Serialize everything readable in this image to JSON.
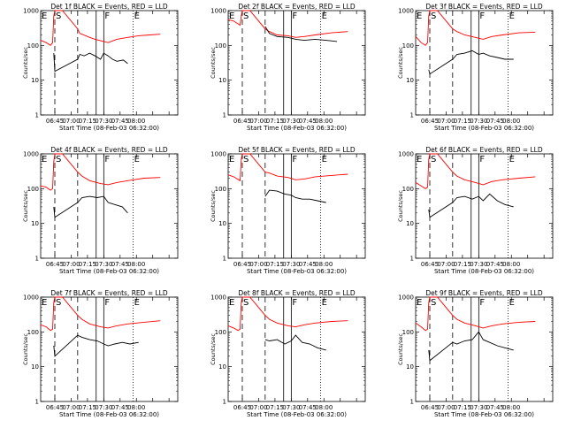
{
  "chart_data": {
    "type": "line",
    "shared": {
      "y_scale": "log",
      "ylim": [
        1,
        1000
      ],
      "ytick_labels": [
        "1",
        "10",
        "100",
        "1000"
      ],
      "ylabel": "Counts/sec",
      "xlabel": "Start Time (08-Feb-03 06:32:00)",
      "x_unit": "minutes after 06:32:00",
      "xlim": [
        0,
        126
      ],
      "xtick_values": [
        13,
        28,
        43,
        58,
        73,
        88,
        103,
        118
      ],
      "xtick_labels": [
        "06:45",
        "07:00",
        "07:15",
        "07:30",
        "07:45",
        "08:00"
      ],
      "xtick_label_values": [
        13,
        28,
        43,
        58,
        73,
        88
      ],
      "series_colors": {
        "events": "#000000",
        "lld": "#ff0000"
      },
      "markers": [
        {
          "letter": "E",
          "x": 0
        },
        {
          "letter": "S",
          "x": 13
        },
        {
          "letter": "F",
          "x": 58
        },
        {
          "letter": "E",
          "x": 85
        }
      ],
      "dashed_lines": [
        13,
        34
      ],
      "solid_lines": [
        51,
        58
      ],
      "dotted_lines": [
        85
      ]
    },
    "panels": [
      {
        "title": "Det 1f BLACK = Events, RED = LLD",
        "red": [
          [
            0,
            140
          ],
          [
            5,
            120
          ],
          [
            9,
            100
          ],
          [
            11,
            120
          ],
          [
            12,
            700
          ],
          [
            13,
            1000
          ],
          [
            20,
            1000
          ],
          [
            34,
            300
          ],
          [
            36,
            220
          ],
          [
            38,
            210
          ],
          [
            45,
            170
          ],
          [
            50,
            150
          ],
          [
            58,
            130
          ],
          [
            62,
            120
          ],
          [
            70,
            150
          ],
          [
            80,
            170
          ],
          [
            90,
            190
          ],
          [
            100,
            200
          ],
          [
            110,
            210
          ]
        ],
        "black": [
          [
            12,
            60
          ],
          [
            13,
            18
          ],
          [
            34,
            40
          ],
          [
            36,
            55
          ],
          [
            40,
            50
          ],
          [
            45,
            60
          ],
          [
            50,
            50
          ],
          [
            55,
            40
          ],
          [
            58,
            60
          ],
          [
            62,
            50
          ],
          [
            66,
            40
          ],
          [
            70,
            35
          ],
          [
            76,
            38
          ],
          [
            80,
            30
          ]
        ]
      },
      {
        "title": "Det 2f BLACK = Events, RED = LLD",
        "red": [
          [
            0,
            550
          ],
          [
            5,
            500
          ],
          [
            11,
            380
          ],
          [
            12,
            700
          ],
          [
            13,
            1000
          ],
          [
            20,
            1000
          ],
          [
            34,
            300
          ],
          [
            38,
            250
          ],
          [
            45,
            200
          ],
          [
            55,
            190
          ],
          [
            62,
            170
          ],
          [
            70,
            180
          ],
          [
            80,
            200
          ],
          [
            95,
            230
          ],
          [
            110,
            250
          ]
        ],
        "black": [
          [
            34,
            350
          ],
          [
            38,
            220
          ],
          [
            45,
            180
          ],
          [
            55,
            170
          ],
          [
            62,
            150
          ],
          [
            70,
            140
          ],
          [
            80,
            150
          ],
          [
            90,
            140
          ],
          [
            100,
            130
          ]
        ]
      },
      {
        "title": "Det 3f BLACK = Events, RED = LLD",
        "red": [
          [
            0,
            180
          ],
          [
            5,
            120
          ],
          [
            9,
            100
          ],
          [
            11,
            120
          ],
          [
            12,
            700
          ],
          [
            13,
            1000
          ],
          [
            20,
            1000
          ],
          [
            34,
            300
          ],
          [
            38,
            250
          ],
          [
            45,
            200
          ],
          [
            55,
            170
          ],
          [
            62,
            150
          ],
          [
            70,
            180
          ],
          [
            80,
            200
          ],
          [
            95,
            230
          ],
          [
            110,
            240
          ]
        ],
        "black": [
          [
            12,
            20
          ],
          [
            13,
            15
          ],
          [
            34,
            40
          ],
          [
            38,
            55
          ],
          [
            45,
            60
          ],
          [
            52,
            70
          ],
          [
            58,
            55
          ],
          [
            62,
            60
          ],
          [
            68,
            50
          ],
          [
            75,
            45
          ],
          [
            82,
            40
          ],
          [
            90,
            40
          ]
        ]
      },
      {
        "title": "Det 4f BLACK = Events, RED = LLD",
        "red": [
          [
            0,
            120
          ],
          [
            5,
            110
          ],
          [
            9,
            90
          ],
          [
            11,
            100
          ],
          [
            12,
            600
          ],
          [
            13,
            1000
          ],
          [
            20,
            1000
          ],
          [
            34,
            300
          ],
          [
            38,
            230
          ],
          [
            45,
            170
          ],
          [
            55,
            140
          ],
          [
            62,
            130
          ],
          [
            70,
            150
          ],
          [
            80,
            170
          ],
          [
            95,
            200
          ],
          [
            110,
            210
          ]
        ],
        "black": [
          [
            12,
            30
          ],
          [
            13,
            15
          ],
          [
            34,
            40
          ],
          [
            38,
            55
          ],
          [
            45,
            60
          ],
          [
            52,
            55
          ],
          [
            58,
            60
          ],
          [
            62,
            40
          ],
          [
            68,
            35
          ],
          [
            75,
            30
          ],
          [
            80,
            20
          ]
        ]
      },
      {
        "title": "Det 5f BLACK = Events, RED = LLD",
        "red": [
          [
            0,
            250
          ],
          [
            5,
            220
          ],
          [
            11,
            170
          ],
          [
            12,
            700
          ],
          [
            13,
            1000
          ],
          [
            20,
            1000
          ],
          [
            34,
            300
          ],
          [
            38,
            280
          ],
          [
            45,
            230
          ],
          [
            55,
            210
          ],
          [
            62,
            180
          ],
          [
            70,
            190
          ],
          [
            80,
            220
          ],
          [
            95,
            240
          ],
          [
            110,
            260
          ]
        ],
        "black": [
          [
            34,
            60
          ],
          [
            38,
            90
          ],
          [
            45,
            85
          ],
          [
            52,
            70
          ],
          [
            58,
            65
          ],
          [
            62,
            55
          ],
          [
            68,
            50
          ],
          [
            75,
            50
          ],
          [
            82,
            45
          ],
          [
            90,
            40
          ]
        ]
      },
      {
        "title": "Det 6f BLACK = Events, RED = LLD",
        "red": [
          [
            0,
            150
          ],
          [
            5,
            120
          ],
          [
            9,
            100
          ],
          [
            11,
            110
          ],
          [
            12,
            700
          ],
          [
            13,
            1000
          ],
          [
            20,
            1000
          ],
          [
            34,
            300
          ],
          [
            38,
            230
          ],
          [
            45,
            180
          ],
          [
            55,
            150
          ],
          [
            62,
            130
          ],
          [
            70,
            160
          ],
          [
            80,
            180
          ],
          [
            95,
            200
          ],
          [
            110,
            220
          ]
        ],
        "black": [
          [
            12,
            25
          ],
          [
            13,
            15
          ],
          [
            34,
            40
          ],
          [
            38,
            55
          ],
          [
            45,
            60
          ],
          [
            52,
            50
          ],
          [
            58,
            60
          ],
          [
            62,
            45
          ],
          [
            68,
            70
          ],
          [
            75,
            45
          ],
          [
            82,
            35
          ],
          [
            90,
            30
          ]
        ]
      },
      {
        "title": "Det 7f BLACK = Events, RED = LLD",
        "red": [
          [
            0,
            160
          ],
          [
            5,
            140
          ],
          [
            9,
            110
          ],
          [
            11,
            120
          ],
          [
            12,
            700
          ],
          [
            13,
            1000
          ],
          [
            20,
            1000
          ],
          [
            34,
            300
          ],
          [
            38,
            230
          ],
          [
            45,
            170
          ],
          [
            55,
            140
          ],
          [
            62,
            130
          ],
          [
            70,
            150
          ],
          [
            80,
            170
          ],
          [
            95,
            190
          ],
          [
            110,
            210
          ]
        ],
        "black": [
          [
            12,
            40
          ],
          [
            13,
            20
          ],
          [
            34,
            80
          ],
          [
            38,
            70
          ],
          [
            45,
            60
          ],
          [
            52,
            55
          ],
          [
            58,
            45
          ],
          [
            62,
            40
          ],
          [
            68,
            45
          ],
          [
            75,
            50
          ],
          [
            82,
            45
          ],
          [
            90,
            50
          ]
        ]
      },
      {
        "title": "Det 8f BLACK = Events, RED = LLD",
        "red": [
          [
            0,
            150
          ],
          [
            5,
            130
          ],
          [
            9,
            110
          ],
          [
            11,
            120
          ],
          [
            12,
            700
          ],
          [
            13,
            1000
          ],
          [
            20,
            1000
          ],
          [
            34,
            300
          ],
          [
            38,
            230
          ],
          [
            45,
            180
          ],
          [
            55,
            150
          ],
          [
            62,
            140
          ],
          [
            70,
            160
          ],
          [
            80,
            180
          ],
          [
            95,
            200
          ],
          [
            110,
            210
          ]
        ],
        "black": [
          [
            34,
            60
          ],
          [
            38,
            55
          ],
          [
            45,
            60
          ],
          [
            52,
            45
          ],
          [
            58,
            55
          ],
          [
            62,
            80
          ],
          [
            68,
            50
          ],
          [
            75,
            45
          ],
          [
            82,
            35
          ],
          [
            90,
            30
          ]
        ]
      },
      {
        "title": "Det 9f BLACK = Events, RED = LLD",
        "red": [
          [
            0,
            180
          ],
          [
            5,
            140
          ],
          [
            9,
            110
          ],
          [
            11,
            120
          ],
          [
            12,
            700
          ],
          [
            13,
            1000
          ],
          [
            20,
            1000
          ],
          [
            34,
            300
          ],
          [
            38,
            230
          ],
          [
            45,
            180
          ],
          [
            55,
            150
          ],
          [
            62,
            130
          ],
          [
            70,
            150
          ],
          [
            80,
            170
          ],
          [
            95,
            190
          ],
          [
            110,
            200
          ]
        ],
        "black": [
          [
            12,
            30
          ],
          [
            13,
            15
          ],
          [
            34,
            50
          ],
          [
            38,
            45
          ],
          [
            45,
            55
          ],
          [
            52,
            60
          ],
          [
            58,
            100
          ],
          [
            62,
            60
          ],
          [
            68,
            50
          ],
          [
            75,
            40
          ],
          [
            82,
            35
          ],
          [
            90,
            30
          ]
        ]
      }
    ]
  }
}
